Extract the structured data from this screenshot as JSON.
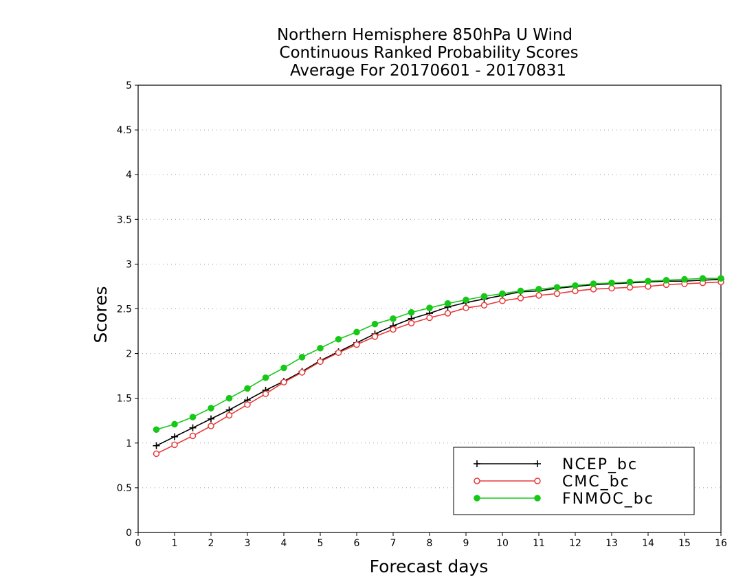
{
  "chart_data": {
    "type": "line",
    "title_lines": [
      "Northern Hemisphere 850hPa U Wind",
      "Continuous Ranked Probability Scores",
      "Average For 20170601 - 20170831"
    ],
    "xlabel": "Forecast days",
    "ylabel": "Scores",
    "xlim": [
      0,
      16
    ],
    "ylim": [
      0,
      5
    ],
    "xticks": [
      "0",
      "1",
      "2",
      "3",
      "4",
      "5",
      "6",
      "7",
      "8",
      "9",
      "10",
      "11",
      "12",
      "13",
      "14",
      "15",
      "16"
    ],
    "yticks": [
      "0",
      "0.5",
      "1",
      "1.5",
      "2",
      "2.5",
      "3",
      "3.5",
      "4",
      "4.5",
      "5"
    ],
    "grid": "horizontal dotted",
    "legend_position": "bottom-right",
    "x": [
      0.5,
      1,
      1.5,
      2,
      2.5,
      3,
      3.5,
      4,
      4.5,
      5,
      5.5,
      6,
      6.5,
      7,
      7.5,
      8,
      8.5,
      9,
      9.5,
      10,
      10.5,
      11,
      11.5,
      12,
      12.5,
      13,
      13.5,
      14,
      14.5,
      15,
      15.5,
      16
    ],
    "series": [
      {
        "name": "NCEP_bc",
        "color": "#000000",
        "marker": "plus",
        "values": [
          0.97,
          1.07,
          1.17,
          1.27,
          1.37,
          1.48,
          1.59,
          1.69,
          1.8,
          1.92,
          2.02,
          2.12,
          2.22,
          2.31,
          2.39,
          2.45,
          2.52,
          2.57,
          2.61,
          2.65,
          2.69,
          2.7,
          2.73,
          2.75,
          2.77,
          2.78,
          2.79,
          2.8,
          2.81,
          2.81,
          2.82,
          2.83
        ]
      },
      {
        "name": "CMC_bc",
        "color": "#e83a3a",
        "marker": "open-circle",
        "values": [
          0.88,
          0.98,
          1.08,
          1.19,
          1.31,
          1.43,
          1.55,
          1.68,
          1.79,
          1.91,
          2.01,
          2.1,
          2.19,
          2.27,
          2.34,
          2.4,
          2.45,
          2.51,
          2.54,
          2.59,
          2.62,
          2.65,
          2.67,
          2.7,
          2.72,
          2.73,
          2.74,
          2.75,
          2.77,
          2.78,
          2.79,
          2.8
        ]
      },
      {
        "name": "FNMOC_bc",
        "color": "#18c818",
        "marker": "filled-circle",
        "values": [
          1.15,
          1.21,
          1.29,
          1.39,
          1.5,
          1.61,
          1.73,
          1.84,
          1.96,
          2.06,
          2.16,
          2.24,
          2.33,
          2.39,
          2.46,
          2.51,
          2.56,
          2.6,
          2.64,
          2.67,
          2.7,
          2.72,
          2.74,
          2.76,
          2.78,
          2.79,
          2.8,
          2.81,
          2.82,
          2.83,
          2.84,
          2.84
        ]
      }
    ]
  }
}
